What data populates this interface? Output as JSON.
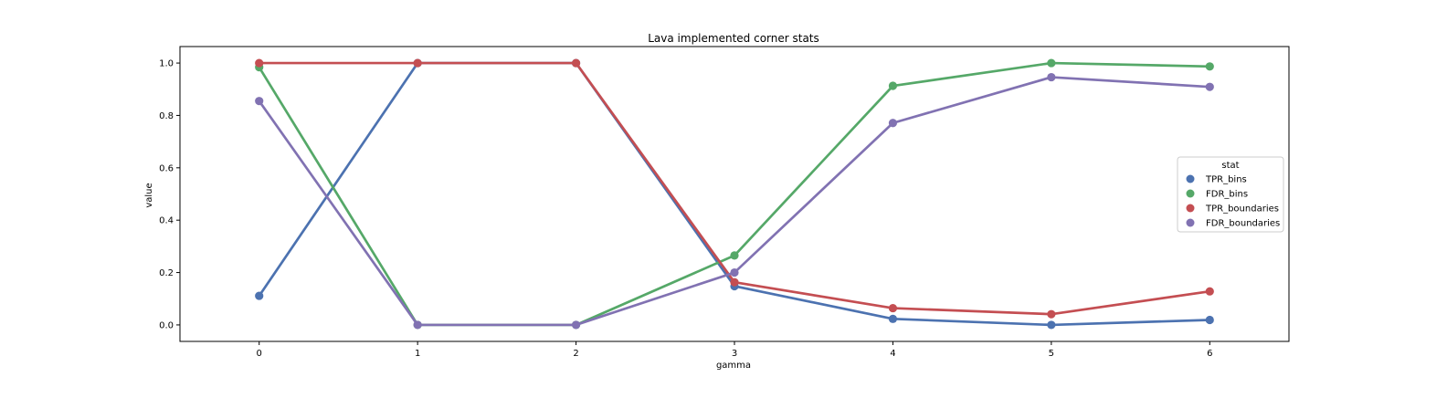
{
  "chart_data": {
    "type": "line",
    "title": "Lava implemented corner stats",
    "xlabel": "gamma",
    "ylabel": "value",
    "x": [
      0,
      1,
      2,
      3,
      4,
      5,
      6
    ],
    "x_tick_labels": [
      "0",
      "1",
      "2",
      "3",
      "4",
      "5",
      "6"
    ],
    "y_ticks": [
      0.0,
      0.2,
      0.4,
      0.6,
      0.8,
      1.0
    ],
    "y_tick_labels": [
      "0.0",
      "0.2",
      "0.4",
      "0.6",
      "0.8",
      "1.0"
    ],
    "xlim": [
      -0.5,
      6.5
    ],
    "ylim": [
      -0.063,
      1.063
    ],
    "grid": false,
    "legend": {
      "title": "stat",
      "placement": "center-right"
    },
    "series": [
      {
        "name": "TPR_bins",
        "color": "#4c72b0",
        "values": [
          0.111,
          1.0,
          1.0,
          0.148,
          0.023,
          0.0,
          0.019
        ]
      },
      {
        "name": "FDR_bins",
        "color": "#55a868",
        "values": [
          0.984,
          0.0,
          0.0,
          0.265,
          0.913,
          1.0,
          0.987
        ]
      },
      {
        "name": "TPR_boundaries",
        "color": "#c44e52",
        "values": [
          1.0,
          1.0,
          1.0,
          0.163,
          0.064,
          0.041,
          0.128
        ]
      },
      {
        "name": "FDR_boundaries",
        "color": "#8172b2",
        "values": [
          0.855,
          0.0,
          0.0,
          0.2,
          0.771,
          0.946,
          0.909
        ]
      }
    ]
  }
}
